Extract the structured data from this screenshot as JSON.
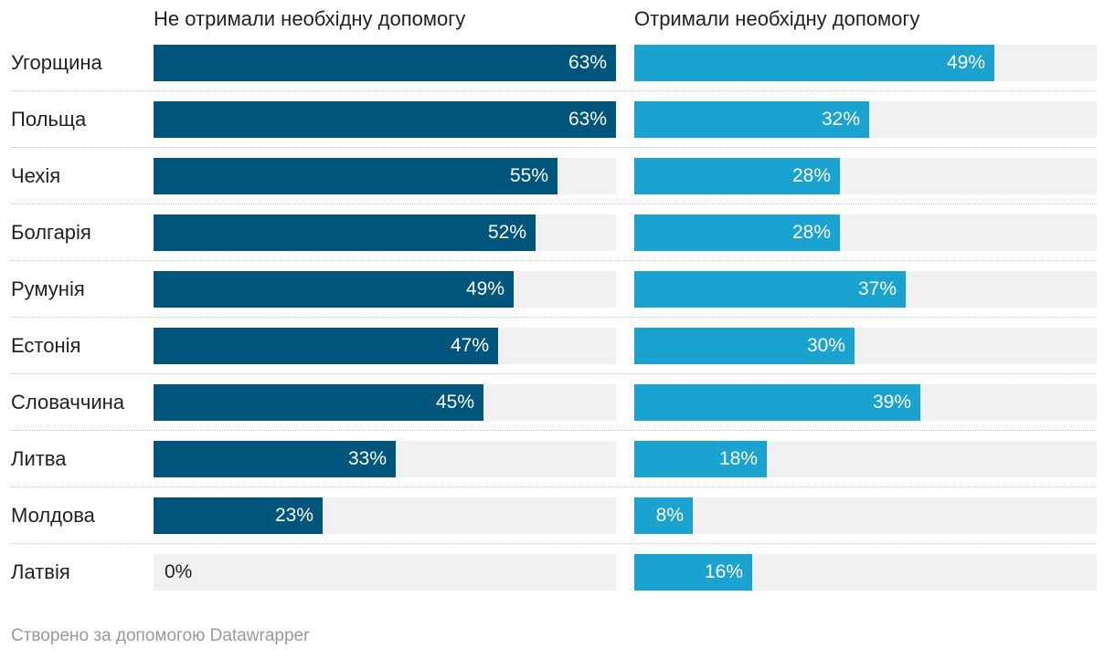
{
  "chart_data": {
    "type": "bar",
    "orientation": "horizontal",
    "unit": "%",
    "xlim": [
      0,
      63
    ],
    "categories": [
      "Угорщина",
      "Польща",
      "Чехія",
      "Болгарія",
      "Румунія",
      "Естонія",
      "Словаччина",
      "Литва",
      "Молдова",
      "Латвія"
    ],
    "series": [
      {
        "name": "Не отримали необхідну допомогу",
        "color": "#00557d",
        "values": [
          63,
          63,
          55,
          52,
          49,
          47,
          45,
          33,
          23,
          0
        ],
        "labels": [
          "63%",
          "63%",
          "55%",
          "52%",
          "49%",
          "47%",
          "45%",
          "33%",
          "23%",
          "0%"
        ]
      },
      {
        "name": "Отримали необхідну допомогу",
        "color": "#1aa3d0",
        "values": [
          49,
          32,
          28,
          28,
          37,
          30,
          39,
          18,
          8,
          16
        ],
        "labels": [
          "49%",
          "32%",
          "28%",
          "28%",
          "37%",
          "30%",
          "39%",
          "18%",
          "8%",
          "16%"
        ]
      }
    ]
  },
  "footer": {
    "credit": "Створено за допомогою Datawrapper"
  }
}
